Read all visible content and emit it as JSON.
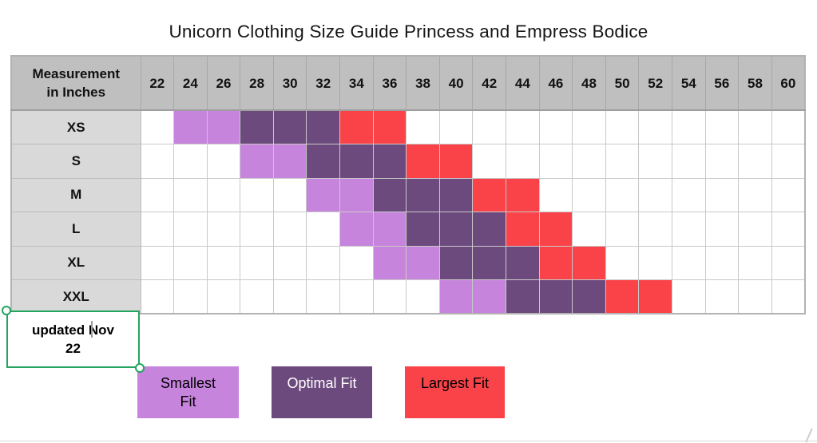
{
  "chart_data": {
    "type": "table",
    "title": "Unicorn Clothing Size Guide Princess and Empress Bodice",
    "corner_header": "Measurement in Inches",
    "columns": [
      "22",
      "24",
      "26",
      "28",
      "30",
      "32",
      "34",
      "36",
      "38",
      "40",
      "42",
      "44",
      "46",
      "48",
      "50",
      "52",
      "54",
      "56",
      "58",
      "60"
    ],
    "rows": [
      {
        "label": "XS",
        "smallest_fit": [
          "24",
          "26"
        ],
        "optimal_fit": [
          "28",
          "30",
          "32"
        ],
        "largest_fit": [
          "34",
          "36"
        ]
      },
      {
        "label": "S",
        "smallest_fit": [
          "28",
          "30"
        ],
        "optimal_fit": [
          "32",
          "34",
          "36"
        ],
        "largest_fit": [
          "38",
          "40"
        ]
      },
      {
        "label": "M",
        "smallest_fit": [
          "32",
          "34"
        ],
        "optimal_fit": [
          "36",
          "38",
          "40"
        ],
        "largest_fit": [
          "42",
          "44"
        ]
      },
      {
        "label": "L",
        "smallest_fit": [
          "34",
          "36"
        ],
        "optimal_fit": [
          "38",
          "40",
          "42"
        ],
        "largest_fit": [
          "44",
          "46"
        ]
      },
      {
        "label": "XL",
        "smallest_fit": [
          "36",
          "38"
        ],
        "optimal_fit": [
          "40",
          "42",
          "44"
        ],
        "largest_fit": [
          "46",
          "48"
        ]
      },
      {
        "label": "XXL",
        "smallest_fit": [
          "40",
          "42"
        ],
        "optimal_fit": [
          "44",
          "46",
          "48"
        ],
        "largest_fit": [
          "50",
          "52"
        ]
      }
    ],
    "legend": [
      {
        "label": "Smallest Fit",
        "color": "#c684dd",
        "text_color": "#000000"
      },
      {
        "label": "Optimal Fit",
        "color": "#6d4a7e",
        "text_color": "#ffffff"
      },
      {
        "label": "Largest Fit",
        "color": "#fa4349",
        "text_color": "#000000"
      }
    ],
    "legend_position": "bottom"
  },
  "note": {
    "text": "updated Nov 22"
  },
  "colors": {
    "smallest": "#c684dd",
    "optimal": "#6d4a7e",
    "largest": "#fa4349",
    "header_bg": "#bfbfbf",
    "row_label_bg": "#d9d9d9",
    "selection_green": "#23a45f"
  }
}
